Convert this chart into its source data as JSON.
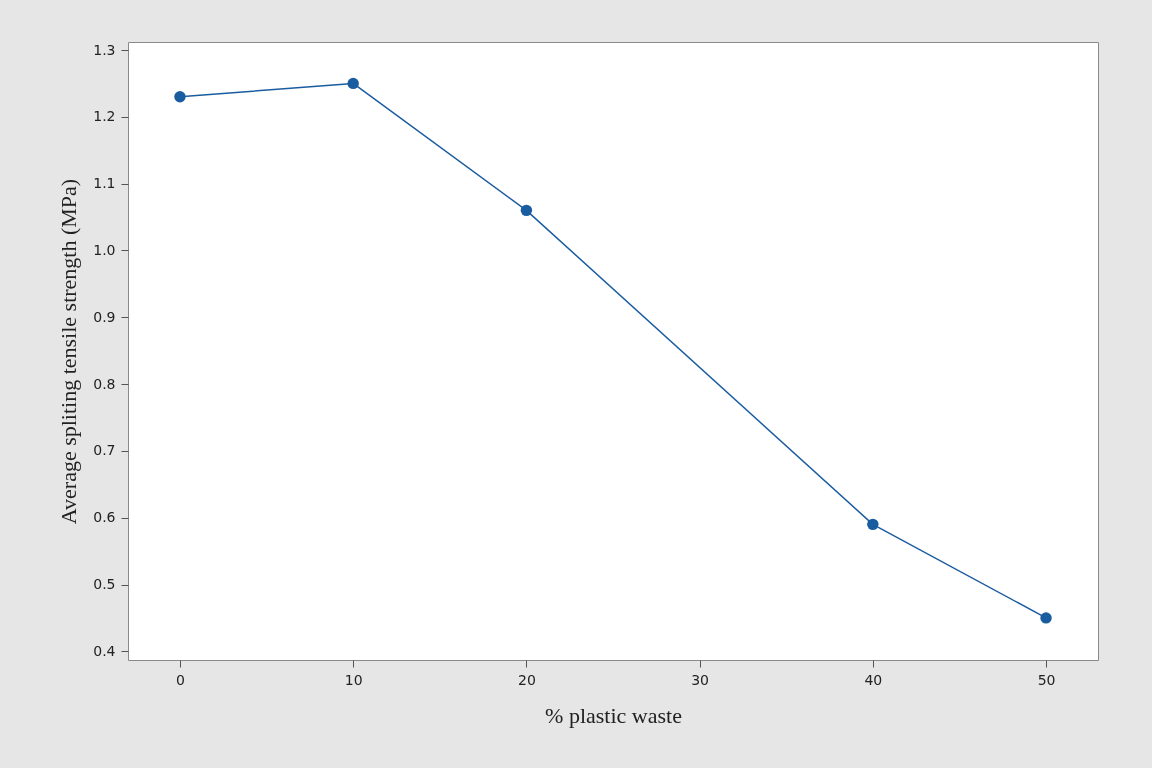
{
  "chart_data": {
    "type": "line",
    "xlabel": "% plastic waste",
    "ylabel": "Average spliting tensile strength (MPa)",
    "x": [
      0,
      10,
      20,
      40,
      50
    ],
    "series": [
      {
        "color": "#1a5ca0",
        "values": [
          1.23,
          1.25,
          1.06,
          0.59,
          0.45
        ]
      }
    ],
    "xlim": [
      -3,
      53
    ],
    "ylim": [
      0.387,
      1.312
    ],
    "xticks": [
      0,
      10,
      20,
      30,
      40,
      50
    ],
    "yticks": [
      {
        "value": 0.4,
        "label": "0.4"
      },
      {
        "value": 0.5,
        "label": "0.5"
      },
      {
        "value": 0.6,
        "label": "0.6"
      },
      {
        "value": 0.7,
        "label": "0.7"
      },
      {
        "value": 0.8,
        "label": "0.8"
      },
      {
        "value": 0.9,
        "label": "0.9"
      },
      {
        "value": 1.0,
        "label": "1.0"
      },
      {
        "value": 1.1,
        "label": "1.1"
      },
      {
        "value": 1.2,
        "label": "1.2"
      },
      {
        "value": 1.3,
        "label": "1.3"
      }
    ],
    "marker": "circle",
    "line_style": "solid",
    "grid": false
  }
}
